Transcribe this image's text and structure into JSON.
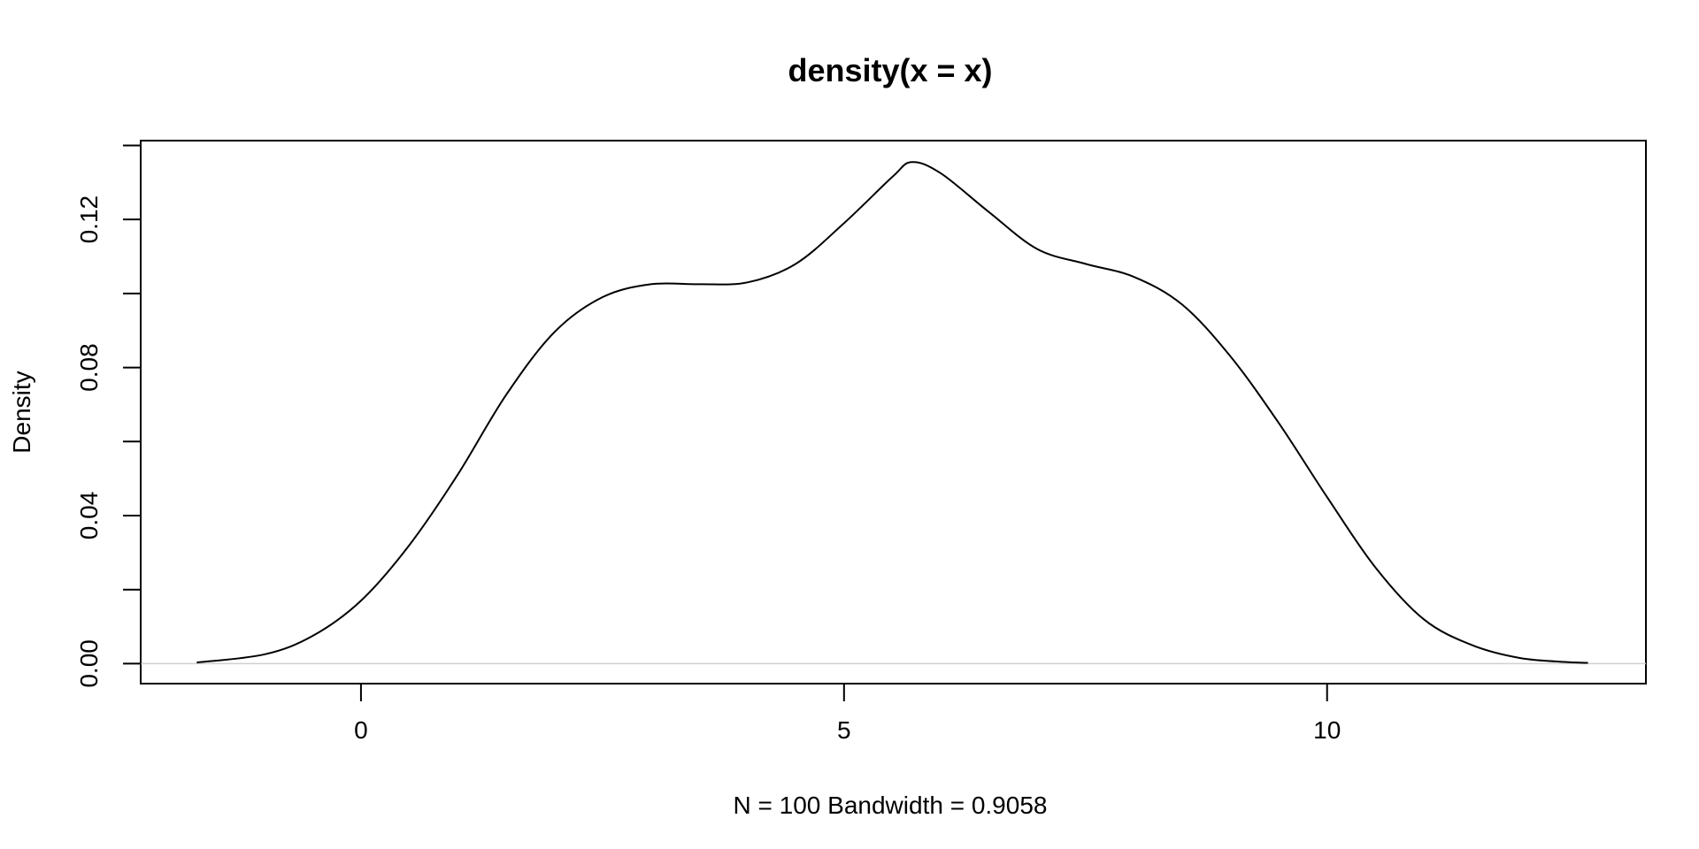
{
  "chart_data": {
    "type": "line",
    "title": "density(x = x)",
    "xlabel": "N = 100   Bandwidth = 0.9058",
    "ylabel": "Density",
    "xlim": [
      -2.28,
      13.3
    ],
    "ylim": [
      -0.0054,
      0.1413
    ],
    "x_ticks": [
      0,
      5,
      10
    ],
    "x_tick_labels": [
      "0",
      "5",
      "10"
    ],
    "y_ticks": [
      0.0,
      0.02,
      0.04,
      0.06,
      0.08,
      0.1,
      0.12,
      0.14
    ],
    "y_tick_labels": [
      "0.00",
      "",
      "0.04",
      "",
      "0.08",
      "",
      "0.12",
      ""
    ],
    "grid": false,
    "zero_baseline": true,
    "series": [
      {
        "x": [
          -1.7,
          -1.0,
          -0.5,
          0.0,
          0.5,
          1.0,
          1.5,
          2.0,
          2.5,
          3.0,
          3.5,
          4.0,
          4.5,
          5.0,
          5.5,
          5.7,
          6.0,
          6.5,
          7.0,
          7.5,
          8.0,
          8.5,
          9.0,
          9.5,
          10.0,
          10.5,
          11.0,
          11.5,
          12.0,
          12.5,
          12.7
        ],
        "y": [
          0.0003,
          0.0025,
          0.0075,
          0.017,
          0.032,
          0.051,
          0.0725,
          0.0895,
          0.099,
          0.1025,
          0.1025,
          0.103,
          0.108,
          0.119,
          0.1315,
          0.1355,
          0.1325,
          0.122,
          0.112,
          0.108,
          0.1045,
          0.097,
          0.083,
          0.065,
          0.045,
          0.026,
          0.012,
          0.005,
          0.0015,
          0.0004,
          0.0002
        ]
      }
    ]
  }
}
